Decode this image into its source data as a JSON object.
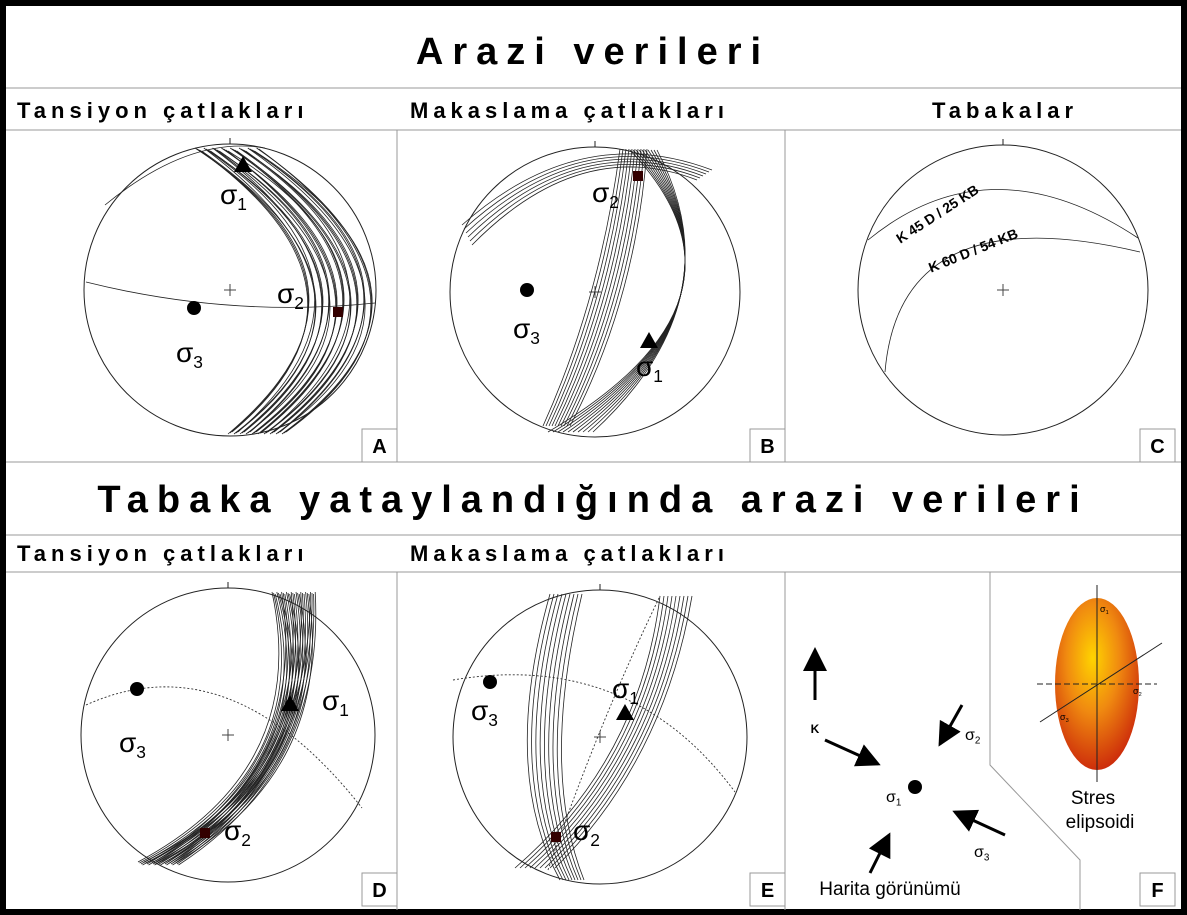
{
  "title": "Arazi verileri",
  "subtitle": "Tabaka yataylandığında arazi verileri",
  "panels": [
    {
      "letter": "A",
      "heading": "Tansiyon çatlakları",
      "sigmas": [
        {
          "symbol": "σ",
          "index": "1"
        },
        {
          "symbol": "σ",
          "index": "2"
        },
        {
          "symbol": "σ",
          "index": "3"
        }
      ]
    },
    {
      "letter": "B",
      "heading": "Makaslama çatlakları",
      "sigmas": [
        {
          "symbol": "σ",
          "index": "1"
        },
        {
          "symbol": "σ",
          "index": "2"
        },
        {
          "symbol": "σ",
          "index": "3"
        }
      ]
    },
    {
      "letter": "C",
      "heading": "Tabakalar",
      "planes": [
        "K 45 D / 25 KB",
        "K 60 D / 54 KB"
      ]
    },
    {
      "letter": "D",
      "heading": "Tansiyon çatlakları",
      "sigmas": [
        {
          "symbol": "σ",
          "index": "1"
        },
        {
          "symbol": "σ",
          "index": "2"
        },
        {
          "symbol": "σ",
          "index": "3"
        }
      ]
    },
    {
      "letter": "E",
      "heading": "Makaslama çatlakları",
      "sigmas": [
        {
          "symbol": "σ",
          "index": "1"
        },
        {
          "symbol": "σ",
          "index": "2"
        },
        {
          "symbol": "σ",
          "index": "3"
        }
      ]
    },
    {
      "letter": "F",
      "north": "K",
      "map_label": "Harita görünümü",
      "ellipsoid_label": [
        "Stres",
        "elipsoidi"
      ],
      "map_sigmas": [
        {
          "symbol": "σ",
          "index": "1"
        },
        {
          "symbol": "σ",
          "index": "2"
        },
        {
          "symbol": "σ",
          "index": "3"
        }
      ],
      "ellipsoid_sigmas": [
        {
          "symbol": "σ",
          "index": "1"
        },
        {
          "symbol": "σ",
          "index": "2"
        },
        {
          "symbol": "σ",
          "index": "3"
        }
      ]
    }
  ]
}
